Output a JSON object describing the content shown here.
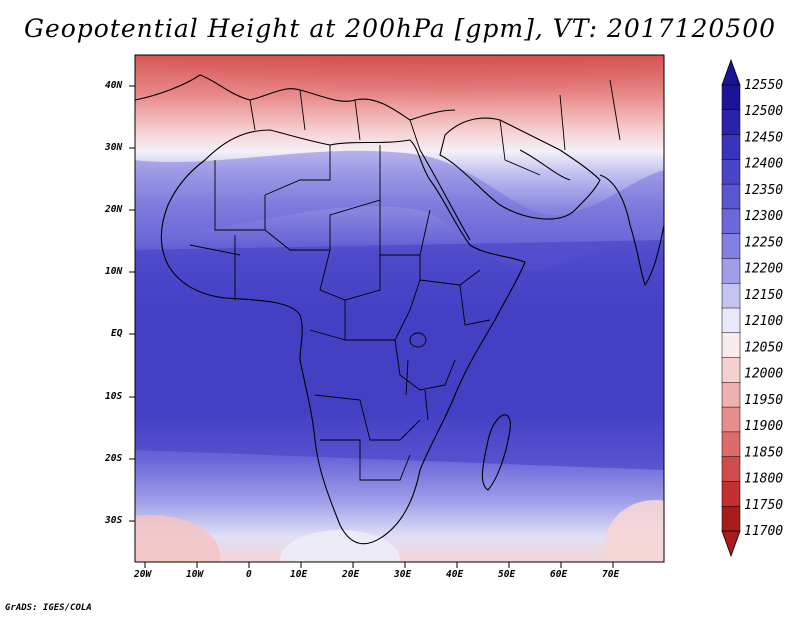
{
  "title": "Geopotential Height at 200hPa [gpm], VT: 2017120500",
  "credit": "GrADS: IGES/COLA",
  "map": {
    "lat_labels": [
      "40N",
      "30N",
      "20N",
      "10N",
      "EQ",
      "10S",
      "20S",
      "30S"
    ],
    "lon_labels": [
      "20W",
      "10W",
      "0",
      "10E",
      "20E",
      "30E",
      "40E",
      "50E",
      "60E",
      "70E"
    ]
  },
  "colorbar": {
    "labels": [
      "12550",
      "12500",
      "12450",
      "12400",
      "12350",
      "12300",
      "12250",
      "12200",
      "12150",
      "12100",
      "12050",
      "12000",
      "11950",
      "11900",
      "11850",
      "11800",
      "11750",
      "11700"
    ],
    "colors": [
      "#1c1496",
      "#2a22a8",
      "#3a34bc",
      "#4a44c8",
      "#5a56d2",
      "#6c68da",
      "#8480e2",
      "#a09ee8",
      "#c4c4f0",
      "#e8e8f8",
      "#fbecec",
      "#f6cfcf",
      "#f0b0b0",
      "#e68e8e",
      "#dc6c6c",
      "#d04c4c",
      "#c43030",
      "#a81c1c"
    ]
  }
}
